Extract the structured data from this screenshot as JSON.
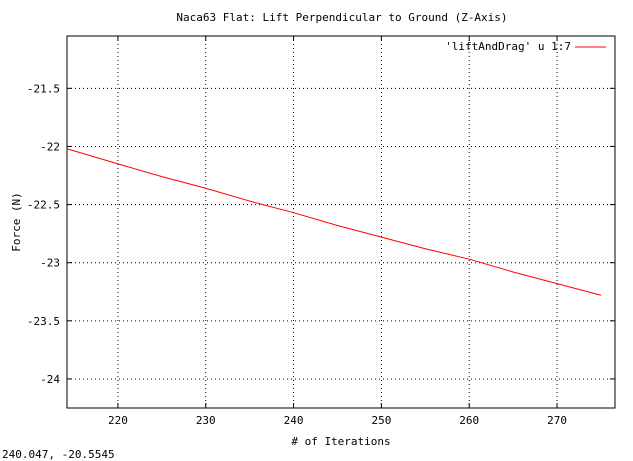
{
  "window": {
    "status_readout": "240.047, -20.5545"
  },
  "chart_data": {
    "type": "line",
    "title": "Naca63 Flat: Lift Perpendicular to Ground (Z-Axis)",
    "xlabel": "# of Iterations",
    "ylabel": "Force (N)",
    "xlim": [
      214.2,
      276.6
    ],
    "ylim": [
      -24.25,
      -21.05
    ],
    "xticks": [
      220,
      230,
      240,
      250,
      260,
      270
    ],
    "yticks": [
      -21.5,
      -22,
      -22.5,
      -23,
      -23.5,
      -24
    ],
    "xtick_labels": [
      "220",
      "230",
      "240",
      "250",
      "260",
      "270"
    ],
    "ytick_labels": [
      "-21.5",
      "-22",
      "-22.5",
      "-23",
      "-23.5",
      "-24"
    ],
    "grid": true,
    "legend_position": "top-right",
    "series": [
      {
        "name": "'liftAndDrag' u 1:7",
        "color": "#ff0000",
        "x": [
          214.2,
          220,
          225,
          230,
          235,
          240,
          245,
          250,
          255,
          260,
          265,
          270,
          275
        ],
        "y": [
          -22.02,
          -22.15,
          -22.26,
          -22.36,
          -22.47,
          -22.57,
          -22.68,
          -22.78,
          -22.88,
          -22.97,
          -23.08,
          -23.18,
          -23.28
        ]
      }
    ]
  }
}
